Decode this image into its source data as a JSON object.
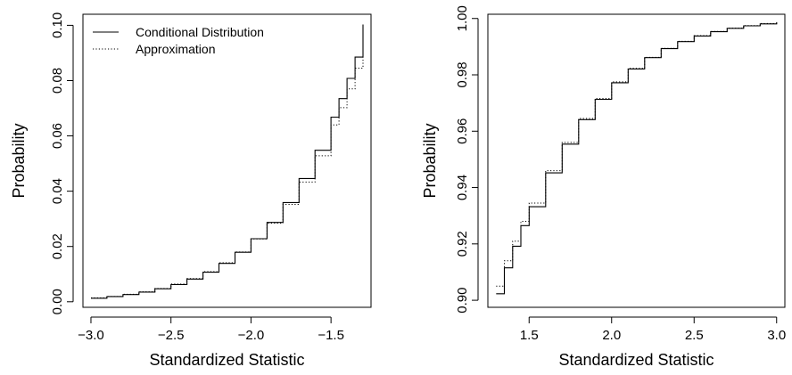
{
  "chart_data": [
    {
      "type": "line",
      "xlabel": "Standardized Statistic",
      "ylabel": "Probability",
      "xlim": [
        -3.05,
        -1.25
      ],
      "ylim": [
        -0.002,
        0.104
      ],
      "xticks": [
        -3.0,
        -2.5,
        -2.0,
        -1.5
      ],
      "xtick_labels": [
        "−3.0",
        "−2.5",
        "−2.0",
        "−1.5"
      ],
      "yticks": [
        0.0,
        0.02,
        0.04,
        0.06,
        0.08,
        0.1
      ],
      "ytick_labels": [
        "0.00",
        "0.02",
        "0.04",
        "0.06",
        "0.08",
        "0.10"
      ],
      "grid": false,
      "legend": {
        "position": "top-left",
        "entries": [
          {
            "label": "Conditional Distribution",
            "style": "solid"
          },
          {
            "label": "Approximation",
            "style": "dotted"
          }
        ]
      },
      "series": [
        {
          "name": "Conditional Distribution",
          "style": "step-solid",
          "x": [
            -3.0,
            -2.9,
            -2.8,
            -2.7,
            -2.6,
            -2.5,
            -2.4,
            -2.3,
            -2.2,
            -2.1,
            -2.0,
            -1.9,
            -1.8,
            -1.7,
            -1.6,
            -1.5,
            -1.45,
            -1.4,
            -1.35,
            -1.3
          ],
          "y": [
            0.0013,
            0.0019,
            0.0026,
            0.0035,
            0.0047,
            0.0062,
            0.0082,
            0.0107,
            0.0139,
            0.0179,
            0.0228,
            0.0287,
            0.0359,
            0.0446,
            0.0548,
            0.0668,
            0.0735,
            0.0808,
            0.0885,
            0.1003
          ]
        },
        {
          "name": "Approximation",
          "style": "step-dotted",
          "x": [
            -3.0,
            -2.9,
            -2.8,
            -2.7,
            -2.6,
            -2.5,
            -2.4,
            -2.3,
            -2.2,
            -2.1,
            -2.0,
            -1.9,
            -1.8,
            -1.7,
            -1.6,
            -1.5,
            -1.45,
            -1.4,
            -1.35,
            -1.3
          ],
          "y": [
            0.0014,
            0.0019,
            0.0027,
            0.0036,
            0.0048,
            0.0064,
            0.0084,
            0.0109,
            0.0141,
            0.018,
            0.0227,
            0.0284,
            0.0352,
            0.0433,
            0.0528,
            0.064,
            0.0702,
            0.077,
            0.0845,
            0.096
          ]
        }
      ]
    },
    {
      "type": "line",
      "xlabel": "Standardized Statistic",
      "ylabel": "Probability",
      "xlim": [
        1.25,
        3.05
      ],
      "ylim": [
        0.8975,
        1.0015
      ],
      "xticks": [
        1.5,
        2.0,
        2.5,
        3.0
      ],
      "xtick_labels": [
        "1.5",
        "2.0",
        "2.5",
        "3.0"
      ],
      "yticks": [
        0.9,
        0.92,
        0.94,
        0.96,
        0.98,
        1.0
      ],
      "ytick_labels": [
        "0.90",
        "0.92",
        "0.94",
        "0.96",
        "0.98",
        "1.00"
      ],
      "grid": false,
      "series": [
        {
          "name": "Conditional Distribution",
          "style": "step-solid",
          "x": [
            1.3,
            1.35,
            1.4,
            1.45,
            1.5,
            1.6,
            1.7,
            1.8,
            1.9,
            2.0,
            2.1,
            2.2,
            2.3,
            2.4,
            2.5,
            2.6,
            2.7,
            2.8,
            2.9,
            3.0
          ],
          "y": [
            0.9023,
            0.9115,
            0.9192,
            0.9265,
            0.9332,
            0.9452,
            0.9554,
            0.9641,
            0.9713,
            0.9772,
            0.9821,
            0.9861,
            0.9893,
            0.9918,
            0.9938,
            0.9953,
            0.9965,
            0.9974,
            0.9981,
            0.9987
          ]
        },
        {
          "name": "Approximation",
          "style": "step-dotted",
          "x": [
            1.3,
            1.35,
            1.4,
            1.45,
            1.5,
            1.6,
            1.7,
            1.8,
            1.9,
            2.0,
            2.1,
            2.2,
            2.3,
            2.4,
            2.5,
            2.6,
            2.7,
            2.8,
            2.9,
            3.0
          ],
          "y": [
            0.905,
            0.914,
            0.921,
            0.928,
            0.9345,
            0.946,
            0.956,
            0.9645,
            0.9716,
            0.9775,
            0.9823,
            0.9862,
            0.9894,
            0.9919,
            0.9939,
            0.9954,
            0.9966,
            0.9975,
            0.9982,
            0.9988
          ]
        }
      ]
    }
  ]
}
